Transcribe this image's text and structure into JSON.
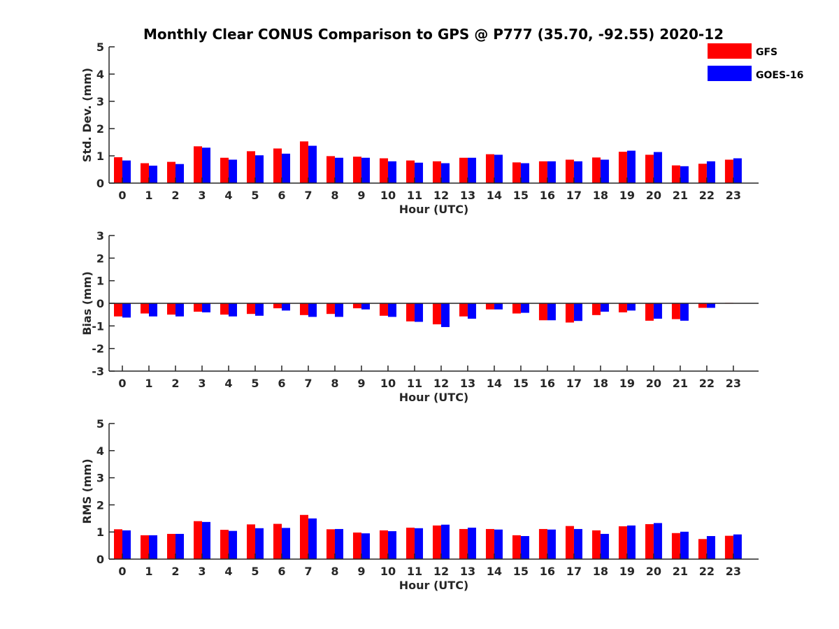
{
  "title": "Monthly Clear CONUS Comparison to GPS @ P777 (35.70, -92.55) 2020-12",
  "legend": {
    "placement": "top-right",
    "items": [
      {
        "label": "GFS",
        "color": "#ff0000"
      },
      {
        "label": "GOES-16",
        "color": "#0000ff"
      }
    ]
  },
  "chart_data": [
    {
      "type": "bar",
      "xlabel": "Hour (UTC)",
      "ylabel": "Std. Dev. (mm)",
      "ylim": [
        0,
        5
      ],
      "yticks": [
        "0",
        "1",
        "2",
        "3",
        "4",
        "5"
      ],
      "categories": [
        "0",
        "1",
        "2",
        "3",
        "4",
        "5",
        "6",
        "7",
        "8",
        "9",
        "10",
        "11",
        "12",
        "13",
        "14",
        "15",
        "16",
        "17",
        "18",
        "19",
        "20",
        "21",
        "22",
        "23"
      ],
      "series": [
        {
          "name": "GFS",
          "color": "#ff0000",
          "values": [
            0.95,
            0.73,
            0.78,
            1.35,
            0.93,
            1.17,
            1.27,
            1.53,
            0.99,
            0.97,
            0.91,
            0.83,
            0.8,
            0.93,
            1.06,
            0.76,
            0.8,
            0.86,
            0.94,
            1.15,
            1.04,
            0.65,
            0.71,
            0.86
          ]
        },
        {
          "name": "GOES-16",
          "color": "#0000ff",
          "values": [
            0.83,
            0.64,
            0.7,
            1.3,
            0.86,
            1.02,
            1.08,
            1.37,
            0.93,
            0.93,
            0.8,
            0.75,
            0.73,
            0.93,
            1.04,
            0.73,
            0.8,
            0.8,
            0.86,
            1.19,
            1.14,
            0.62,
            0.8,
            0.91
          ]
        }
      ]
    },
    {
      "type": "bar",
      "xlabel": "Hour (UTC)",
      "ylabel": "Bias (mm)",
      "ylim": [
        -3,
        3
      ],
      "yticks": [
        "-3",
        "-2",
        "-1",
        "0",
        "1",
        "2",
        "3"
      ],
      "categories": [
        "0",
        "1",
        "2",
        "3",
        "4",
        "5",
        "6",
        "7",
        "8",
        "9",
        "10",
        "11",
        "12",
        "13",
        "14",
        "15",
        "16",
        "17",
        "18",
        "19",
        "20",
        "21",
        "22",
        "23"
      ],
      "series": [
        {
          "name": "GFS",
          "color": "#ff0000",
          "values": [
            -0.58,
            -0.45,
            -0.5,
            -0.37,
            -0.5,
            -0.47,
            -0.22,
            -0.52,
            -0.47,
            -0.22,
            -0.55,
            -0.8,
            -0.93,
            -0.58,
            -0.27,
            -0.45,
            -0.75,
            -0.85,
            -0.52,
            -0.4,
            -0.77,
            -0.7,
            -0.2,
            0.02
          ]
        },
        {
          "name": "GOES-16",
          "color": "#0000ff",
          "values": [
            -0.63,
            -0.58,
            -0.58,
            -0.4,
            -0.58,
            -0.55,
            -0.32,
            -0.6,
            -0.6,
            -0.27,
            -0.6,
            -0.82,
            -1.05,
            -0.68,
            -0.27,
            -0.42,
            -0.75,
            -0.78,
            -0.37,
            -0.32,
            -0.68,
            -0.77,
            -0.2,
            0.0
          ]
        }
      ]
    },
    {
      "type": "bar",
      "xlabel": "Hour (UTC)",
      "ylabel": "RMS (mm)",
      "ylim": [
        0,
        5
      ],
      "yticks": [
        "0",
        "1",
        "2",
        "3",
        "4",
        "5"
      ],
      "categories": [
        "0",
        "1",
        "2",
        "3",
        "4",
        "5",
        "6",
        "7",
        "8",
        "9",
        "10",
        "11",
        "12",
        "13",
        "14",
        "15",
        "16",
        "17",
        "18",
        "19",
        "20",
        "21",
        "22",
        "23"
      ],
      "series": [
        {
          "name": "GFS",
          "color": "#ff0000",
          "values": [
            1.1,
            0.88,
            0.93,
            1.4,
            1.08,
            1.28,
            1.3,
            1.63,
            1.1,
            0.98,
            1.06,
            1.16,
            1.24,
            1.11,
            1.11,
            0.88,
            1.11,
            1.22,
            1.06,
            1.21,
            1.29,
            0.96,
            0.74,
            0.86
          ]
        },
        {
          "name": "GOES-16",
          "color": "#0000ff",
          "values": [
            1.06,
            0.88,
            0.93,
            1.37,
            1.04,
            1.14,
            1.15,
            1.5,
            1.11,
            0.95,
            1.03,
            1.14,
            1.27,
            1.16,
            1.09,
            0.85,
            1.09,
            1.11,
            0.93,
            1.24,
            1.33,
            1.01,
            0.85,
            0.91
          ]
        }
      ]
    }
  ]
}
